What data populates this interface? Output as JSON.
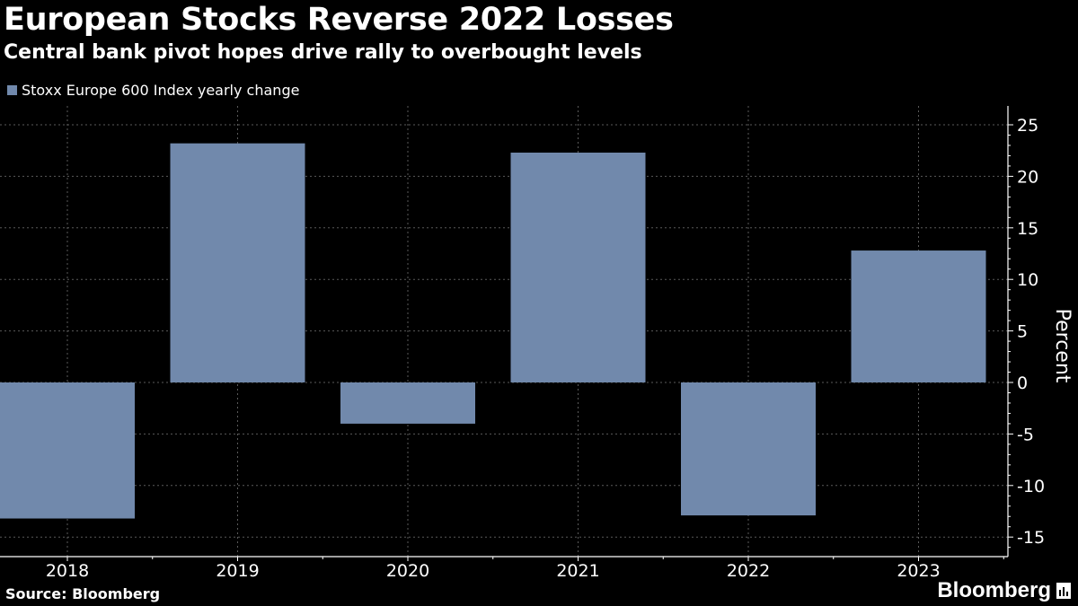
{
  "title": "European Stocks Reverse 2022 Losses",
  "subtitle": "Central bank pivot hopes drive rally to overbought levels",
  "source": "Source: Bloomberg",
  "brand": "Bloomberg",
  "colors": {
    "bar": "#7189ac",
    "background": "#000000",
    "grid": "#5a5a5a",
    "text": "#ffffff"
  },
  "chart_data": {
    "type": "bar",
    "categories": [
      "2018",
      "2019",
      "2020",
      "2021",
      "2022",
      "2023"
    ],
    "series": [
      {
        "name": "Stoxx Europe 600 Index yearly change",
        "values": [
          -13.2,
          23.2,
          -4.0,
          22.3,
          -12.9,
          12.8
        ]
      }
    ],
    "ylabel": "Percent",
    "ylim": [
      -15,
      25
    ],
    "yticks": [
      25,
      20,
      15,
      10,
      5,
      0,
      -5,
      -10,
      -15
    ],
    "ytick_labels": [
      "25",
      "20",
      "15",
      "10",
      "5",
      "0",
      "-5",
      "-10",
      "-15"
    ],
    "grid": true,
    "legend_position": "top-left"
  }
}
